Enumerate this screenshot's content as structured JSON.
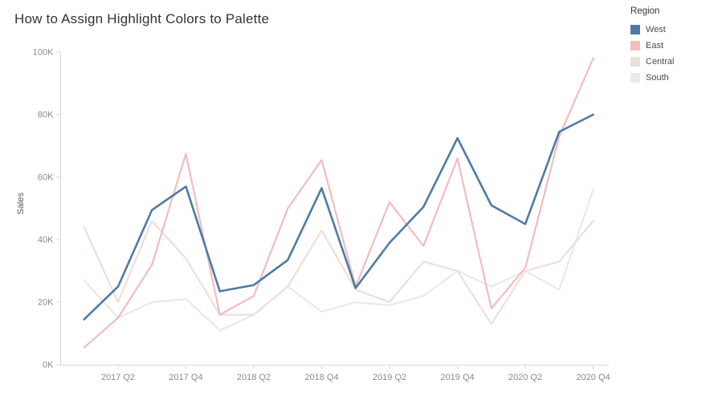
{
  "title": "How to Assign Highlight Colors to Palette",
  "legend": {
    "title": "Region",
    "items": [
      {
        "label": "West",
        "color": "#4f7aa5"
      },
      {
        "label": "East",
        "color": "#f2bcc1"
      },
      {
        "label": "Central",
        "color": "#ece0da"
      },
      {
        "label": "South",
        "color": "#e9e9e7"
      }
    ]
  },
  "chart_data": {
    "type": "line",
    "title": "How to Assign Highlight Colors to Palette",
    "xlabel": "",
    "ylabel": "Sales",
    "ylim": [
      0,
      100
    ],
    "grid": false,
    "legend_position": "top-right",
    "x": [
      "2017 Q1",
      "2017 Q2",
      "2017 Q3",
      "2017 Q4",
      "2018 Q1",
      "2018 Q2",
      "2018 Q3",
      "2018 Q4",
      "2019 Q1",
      "2019 Q2",
      "2019 Q3",
      "2019 Q4",
      "2020 Q1",
      "2020 Q2",
      "2020 Q3",
      "2020 Q4"
    ],
    "x_tick_labels": [
      "2017 Q2",
      "2017 Q4",
      "2018 Q2",
      "2018 Q4",
      "2019 Q2",
      "2019 Q4",
      "2020 Q2",
      "2020 Q4"
    ],
    "y_tick_values": [
      0,
      20,
      40,
      60,
      80,
      100
    ],
    "y_tick_labels": [
      "0K",
      "20K",
      "40K",
      "60K",
      "80K",
      "100K"
    ],
    "units": "K (Sales)",
    "series": [
      {
        "name": "West",
        "color": "#4f7aa5",
        "width": 2.6,
        "values": [
          14.5,
          25,
          49.5,
          57,
          23.5,
          25.5,
          33.5,
          56.5,
          24.5,
          39,
          50.5,
          72.5,
          51,
          45,
          74.5,
          80
        ]
      },
      {
        "name": "East",
        "color": "#f2bcc1",
        "width": 2.2,
        "values": [
          5.5,
          15,
          32,
          67.5,
          16,
          22,
          50,
          65.5,
          25,
          52,
          38,
          66,
          18,
          31,
          73,
          98
        ]
      },
      {
        "name": "Central",
        "color": "#ece0da",
        "width": 2.2,
        "values": [
          44,
          20,
          46,
          34,
          16,
          16,
          25,
          43,
          24,
          20,
          33,
          30,
          13,
          30,
          33,
          46
        ]
      },
      {
        "name": "South",
        "color": "#e9e9e7",
        "width": 2.2,
        "values": [
          27,
          15,
          20,
          21,
          11,
          16,
          25,
          17,
          20,
          19,
          22,
          30,
          25,
          30,
          24,
          56
        ]
      }
    ]
  }
}
